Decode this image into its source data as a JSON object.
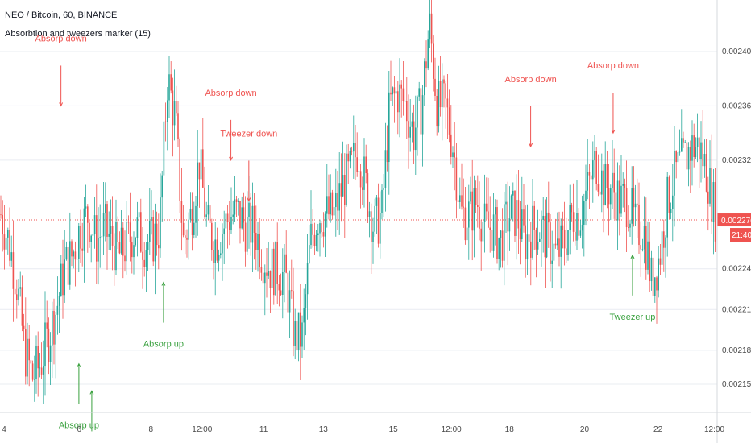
{
  "header": {
    "symbol_line": "NEO / Bitcoin, 60, BINANCE",
    "indicator_line": "Absorbtion and tweezers marker (15)"
  },
  "price_scale": {
    "last_price": "0.002276",
    "countdown": "21:40"
  },
  "colors": {
    "up": "#26a69a",
    "down": "#ef5350",
    "signal_down": "#ef5350",
    "signal_up": "#3aa13f",
    "grid": "#e9ecf2",
    "last_price_line": "#ef5350",
    "countdown_bg": "#ef5350"
  },
  "chart_data": {
    "type": "candlestick",
    "y_ticks": [
      "0.002155",
      "0.002180",
      "0.002210",
      "0.002240",
      "0.002276",
      "0.002320",
      "0.002360",
      "0.002400"
    ],
    "x_ticks": [
      "4",
      "6",
      "8",
      "12:00",
      "11",
      "13",
      "15",
      "12:00",
      "18",
      "20",
      "22",
      "12:00"
    ],
    "x_tick_index": [
      0,
      44,
      86,
      116,
      152,
      187,
      228,
      262,
      296,
      340,
      383,
      416
    ],
    "close_series": [
      0.00228,
      0.00226,
      0.00223,
      0.00218,
      0.00216,
      0.00217,
      0.00219,
      0.00221,
      0.00224,
      0.00225,
      0.00227,
      0.00228,
      0.00226,
      0.00227,
      0.00226,
      0.00225,
      0.00226,
      0.00227,
      0.00226,
      0.00226,
      0.00227,
      0.00238,
      0.00235,
      0.00226,
      0.00228,
      0.00232,
      0.00227,
      0.00226,
      0.00227,
      0.00228,
      0.00228,
      0.00227,
      0.00227,
      0.00225,
      0.00224,
      0.00224,
      0.00223,
      0.00219,
      0.00219,
      0.00226,
      0.00228,
      0.00228,
      0.00228,
      0.0023,
      0.00231,
      0.00233,
      0.0023,
      0.00227,
      0.00228,
      0.00236,
      0.00237,
      0.00236,
      0.00234,
      0.00236,
      0.00242,
      0.00236,
      0.00236,
      0.00233,
      0.00228,
      0.00228,
      0.00229,
      0.00227,
      0.00227,
      0.00226,
      0.00228,
      0.00228,
      0.00226,
      0.00227,
      0.00227,
      0.00226,
      0.00225,
      0.00226,
      0.00228,
      0.00228,
      0.0023,
      0.00232,
      0.0023,
      0.0023,
      0.00229,
      0.00229,
      0.00227,
      0.00227,
      0.00223,
      0.00225,
      0.00229,
      0.00231,
      0.00232,
      0.00233,
      0.00233,
      0.00231,
      0.00228
    ],
    "signals": [
      {
        "label": "Absorp down",
        "kind": "down",
        "x": 0.085,
        "y": 0.00236
      },
      {
        "label": "Absorp down",
        "kind": "down",
        "x": 0.322,
        "y": 0.00232
      },
      {
        "label": "Tweezer down",
        "kind": "down",
        "x": 0.347,
        "y": 0.00229
      },
      {
        "label": "Absorp down",
        "kind": "down",
        "x": 0.74,
        "y": 0.00233
      },
      {
        "label": "Absorp down",
        "kind": "down",
        "x": 0.855,
        "y": 0.00234
      },
      {
        "label": "Absorp up",
        "kind": "up",
        "x": 0.11,
        "y": 0.00217
      },
      {
        "label": "Tweezer up",
        "kind": "up",
        "x": 0.128,
        "y": 0.00215
      },
      {
        "label": "Absorp up",
        "kind": "up",
        "x": 0.228,
        "y": 0.00223
      },
      {
        "label": "Tweezer up",
        "kind": "up",
        "x": 0.882,
        "y": 0.00225
      }
    ]
  }
}
